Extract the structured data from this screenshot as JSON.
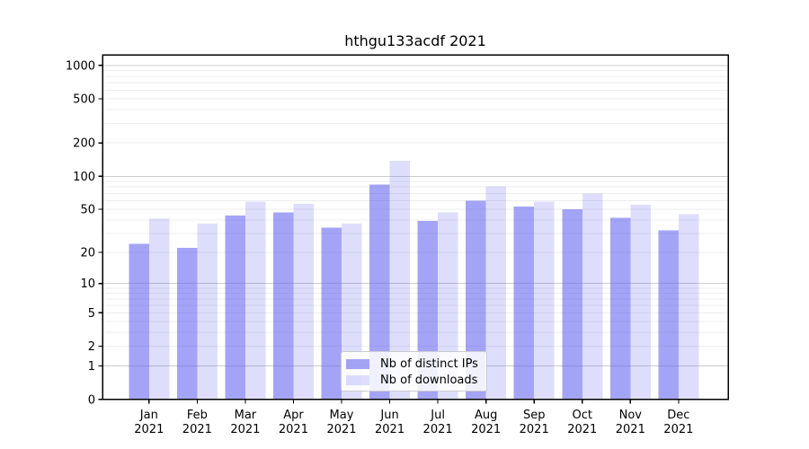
{
  "title": "hthgu133acdf 2021",
  "colors": {
    "ips_bar": "rgba(80,80,240,0.52)",
    "downloads_bar": "rgba(80,80,240,0.19)",
    "ips_bar_hex": "#a4a4f7",
    "downloads_bar_hex": "#dedefc",
    "grid_major": "#cccccc",
    "grid_minor": "#ededed",
    "axis": "#000000",
    "text": "#000000"
  },
  "legend": {
    "items": [
      {
        "label": "Nb of distinct IPs",
        "series": "ips_bar"
      },
      {
        "label": "Nb of downloads",
        "series": "downloads_bar"
      }
    ]
  },
  "chart_data": {
    "type": "bar",
    "title": "hthgu133acdf 2021",
    "categories": [
      "Jan",
      "Feb",
      "Mar",
      "Apr",
      "May",
      "Jun",
      "Jul",
      "Aug",
      "Sep",
      "Oct",
      "Nov",
      "Dec"
    ],
    "x_tick_line2": "2021",
    "series": [
      {
        "name": "Nb of distinct IPs",
        "values": [
          24,
          22,
          44,
          47,
          34,
          84,
          39,
          60,
          53,
          50,
          42,
          32
        ]
      },
      {
        "name": "Nb of downloads",
        "values": [
          41,
          37,
          59,
          56,
          37,
          138,
          47,
          81,
          59,
          70,
          55,
          45
        ]
      }
    ],
    "y_scale": "log1p",
    "y_tick_labels": [
      1000,
      500,
      200,
      100,
      50,
      20,
      10,
      5,
      2,
      1,
      0
    ],
    "y_major_gridlines": [
      1000,
      100,
      10,
      1
    ],
    "ylim": [
      0,
      1243
    ],
    "xlabel": "",
    "ylabel": "",
    "grid": true,
    "legend_position": "lower center"
  }
}
